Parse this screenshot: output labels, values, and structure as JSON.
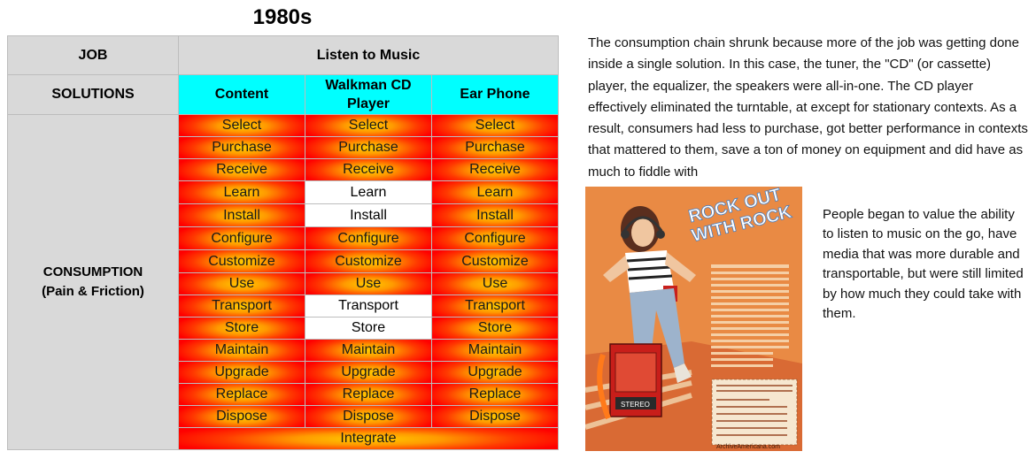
{
  "title": "1980s",
  "table": {
    "job_label": "JOB",
    "job_value": "Listen to Music",
    "solutions_label": "SOLUTIONS",
    "columns": [
      "Content",
      "Walkman CD Player",
      "Ear Phone"
    ],
    "consumption_label": "CONSUMPTION",
    "consumption_sub": "(Pain & Friction)",
    "rows": [
      {
        "cells": [
          "Select",
          "Select",
          "Select"
        ],
        "white": [
          false,
          false,
          false
        ]
      },
      {
        "cells": [
          "Purchase",
          "Purchase",
          "Purchase"
        ],
        "white": [
          false,
          false,
          false
        ]
      },
      {
        "cells": [
          "Receive",
          "Receive",
          "Receive"
        ],
        "white": [
          false,
          false,
          false
        ]
      },
      {
        "cells": [
          "Learn",
          "Learn",
          "Learn"
        ],
        "white": [
          false,
          true,
          false
        ]
      },
      {
        "cells": [
          "Install",
          "Install",
          "Install"
        ],
        "white": [
          false,
          true,
          false
        ]
      },
      {
        "cells": [
          "Configure",
          "Configure",
          "Configure"
        ],
        "white": [
          false,
          false,
          false
        ]
      },
      {
        "cells": [
          "Customize",
          "Customize",
          "Customize"
        ],
        "white": [
          false,
          false,
          false
        ]
      },
      {
        "cells": [
          "Use",
          "Use",
          "Use"
        ],
        "white": [
          false,
          false,
          false
        ]
      },
      {
        "cells": [
          "Transport",
          "Transport",
          "Transport"
        ],
        "white": [
          false,
          true,
          false
        ]
      },
      {
        "cells": [
          "Store",
          "Store",
          "Store"
        ],
        "white": [
          false,
          true,
          false
        ]
      },
      {
        "cells": [
          "Maintain",
          "Maintain",
          "Maintain"
        ],
        "white": [
          false,
          false,
          false
        ]
      },
      {
        "cells": [
          "Upgrade",
          "Upgrade",
          "Upgrade"
        ],
        "white": [
          false,
          false,
          false
        ]
      },
      {
        "cells": [
          "Replace",
          "Replace",
          "Replace"
        ],
        "white": [
          false,
          false,
          false
        ]
      },
      {
        "cells": [
          "Dispose",
          "Dispose",
          "Dispose"
        ],
        "white": [
          false,
          false,
          false
        ]
      }
    ],
    "integrate": "Integrate"
  },
  "paragraph1": "The consumption chain shrunk because more of the job was getting done inside a single solution. In this case, the tuner, the \"CD\" (or cassette) player, the equalizer, the speakers were all-in-one. The CD player effectively eliminated the turntable, at except for stationary contexts. As a result, consumers had less to purchase, got better performance in contexts that mattered to them, save a ton of money on equipment and did have as much to fiddle with",
  "ad": {
    "headline": "ROCK OUT WITH ROCK",
    "device_label": "STEREO",
    "credit": "ArchiveAmericana.com"
  },
  "paragraph2": "People began to value the ability to listen to music on the go, have media that was more durable and transportable, but were still limited by how much they could take with them."
}
